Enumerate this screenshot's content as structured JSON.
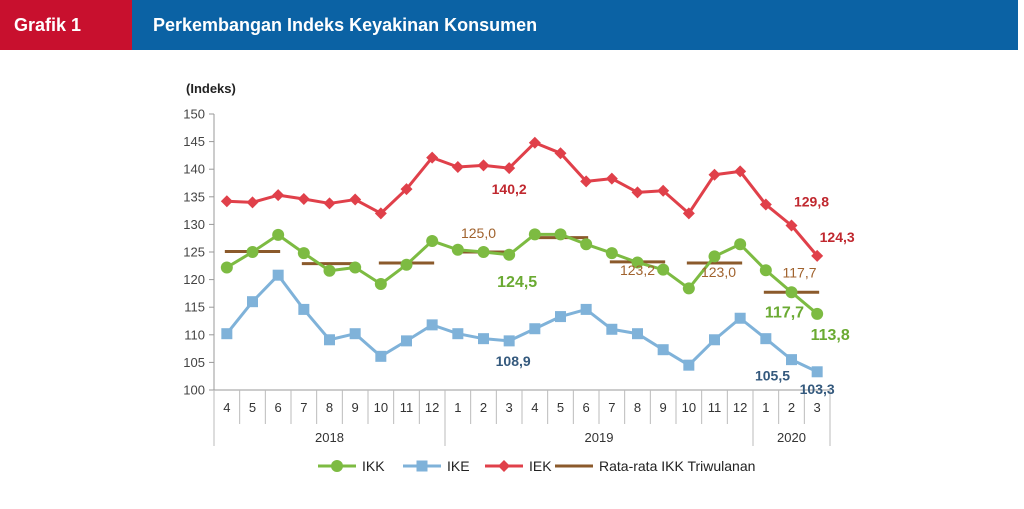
{
  "header": {
    "tag": "Grafik 1",
    "title": "Perkembangan Indeks Keyakinan Konsumen"
  },
  "chart_data": {
    "type": "line",
    "ylabel": "(Indeks)",
    "ylim": [
      100,
      150
    ],
    "yticks": [
      100,
      105,
      110,
      115,
      120,
      125,
      130,
      135,
      140,
      145,
      150
    ],
    "categories": [
      "4",
      "5",
      "6",
      "7",
      "8",
      "9",
      "10",
      "11",
      "12",
      "1",
      "2",
      "3",
      "4",
      "5",
      "6",
      "7",
      "8",
      "9",
      "10",
      "11",
      "12",
      "1",
      "2",
      "3"
    ],
    "years": [
      {
        "label": "2018",
        "start": 0,
        "end": 8
      },
      {
        "label": "2019",
        "start": 9,
        "end": 20
      },
      {
        "label": "2020",
        "start": 21,
        "end": 23
      }
    ],
    "grid": false,
    "legend_position": "bottom",
    "series": [
      {
        "name": "IKK",
        "color": "#7dbb42",
        "marker": "circle",
        "values": [
          122.2,
          125.0,
          128.1,
          124.8,
          121.6,
          122.2,
          119.2,
          122.7,
          127.0,
          125.4,
          125.0,
          124.5,
          128.2,
          128.2,
          126.4,
          124.8,
          123.1,
          121.8,
          118.4,
          124.2,
          126.4,
          121.7,
          117.7,
          113.8
        ]
      },
      {
        "name": "IKE",
        "color": "#7fb2d9",
        "marker": "square",
        "values": [
          110.2,
          116.0,
          120.8,
          114.6,
          109.1,
          110.2,
          106.1,
          108.9,
          111.8,
          110.2,
          109.3,
          108.9,
          111.1,
          113.3,
          114.6,
          111.0,
          110.2,
          107.3,
          104.5,
          109.1,
          113.0,
          109.3,
          105.5,
          103.3
        ]
      },
      {
        "name": "IEK",
        "color": "#e0404a",
        "marker": "diamond",
        "values": [
          134.2,
          134.0,
          135.3,
          134.6,
          133.8,
          134.5,
          132.0,
          136.4,
          142.1,
          140.4,
          140.7,
          140.2,
          144.8,
          142.9,
          137.8,
          138.3,
          135.8,
          136.1,
          132.0,
          139.0,
          139.6,
          133.6,
          129.8,
          124.3
        ]
      },
      {
        "name": "Rata-rata IKK Triwulanan",
        "color": "#8b5a2b",
        "type": "step",
        "quarters": [
          {
            "start": 0,
            "end": 2,
            "value": 125.1
          },
          {
            "start": 3,
            "end": 5,
            "value": 122.9
          },
          {
            "start": 6,
            "end": 8,
            "value": 123.0
          },
          {
            "start": 9,
            "end": 11,
            "value": 125.0
          },
          {
            "start": 12,
            "end": 14,
            "value": 127.6
          },
          {
            "start": 15,
            "end": 17,
            "value": 123.2
          },
          {
            "start": 18,
            "end": 20,
            "value": 123.0
          },
          {
            "start": 21,
            "end": 23,
            "value": 117.7
          }
        ]
      }
    ],
    "annotations": [
      {
        "text": "140,2",
        "series": "IEK",
        "index": 11,
        "color": "#c0282f"
      },
      {
        "text": "129,8",
        "series": "IEK",
        "index": 22,
        "color": "#c0282f"
      },
      {
        "text": "124,3",
        "series": "IEK",
        "index": 23,
        "color": "#c0282f"
      },
      {
        "text": "125,0",
        "series": "Rata-rata IKK Triwulanan",
        "index": 10,
        "color": "#a0622d"
      },
      {
        "text": "124,5",
        "series": "IKK",
        "index": 11,
        "color": "#6aaa32"
      },
      {
        "text": "123,2",
        "series": "Rata-rata IKK Triwulanan",
        "index": 16,
        "color": "#a0622d"
      },
      {
        "text": "123,0",
        "series": "Rata-rata IKK Triwulanan",
        "index": 19,
        "color": "#a0622d"
      },
      {
        "text": "117,7",
        "series": "Rata-rata IKK Triwulanan",
        "index": 22,
        "color": "#a0622d"
      },
      {
        "text": "117,7",
        "series": "IKK",
        "index": 22,
        "color": "#6aaa32"
      },
      {
        "text": "113,8",
        "series": "IKK",
        "index": 23,
        "color": "#6aaa32"
      },
      {
        "text": "108,9",
        "series": "IKE",
        "index": 11,
        "color": "#34597d"
      },
      {
        "text": "105,5",
        "series": "IKE",
        "index": 22,
        "color": "#34597d"
      },
      {
        "text": "103,3",
        "series": "IKE",
        "index": 23,
        "color": "#34597d"
      }
    ]
  }
}
